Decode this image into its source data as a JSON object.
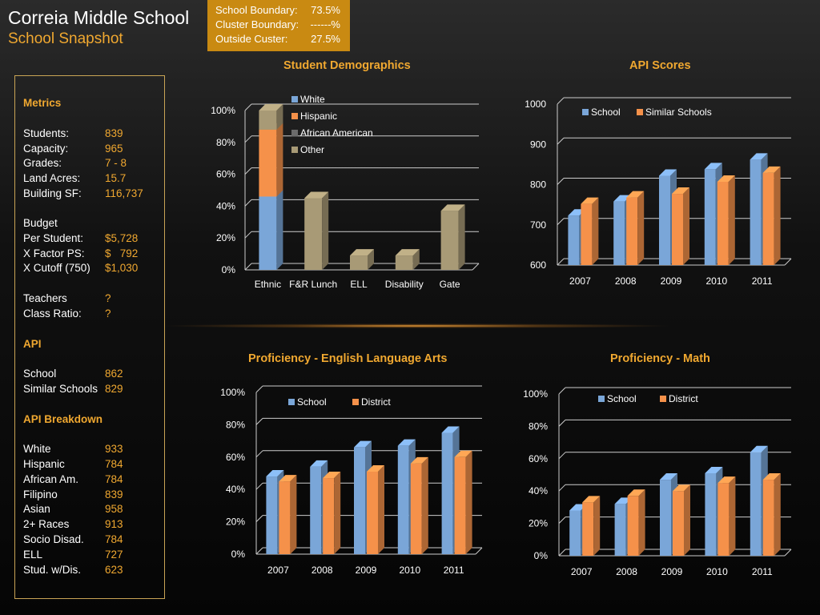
{
  "header": {
    "title": "Correia Middle School",
    "subtitle": "School Snapshot"
  },
  "boundary": [
    {
      "label": "School Boundary:",
      "value": "73.5%"
    },
    {
      "label": "Cluster Boundary:",
      "value": "------%"
    },
    {
      "label": "Outside Custer:",
      "value": "27.5%"
    }
  ],
  "metrics": {
    "heading": "Metrics",
    "rows": [
      {
        "k": "Students:",
        "v": "839"
      },
      {
        "k": "Capacity:",
        "v": "965"
      },
      {
        "k": "Grades:",
        "v": "7 - 8"
      },
      {
        "k": "Land Acres:",
        "v": "15.7"
      },
      {
        "k": "Building SF:",
        "v": "116,737"
      }
    ],
    "budget_heading": "Budget",
    "budget": [
      {
        "k": "Per Student:",
        "v": "$5,728"
      },
      {
        "k": "X Factor PS:",
        "v": "$   792"
      },
      {
        "k": "X Cutoff (750)",
        "v": "$1,030"
      }
    ],
    "staff": [
      {
        "k": "Teachers",
        "v": "?"
      },
      {
        "k": "Class Ratio:",
        "v": "?"
      }
    ],
    "api_heading": "API",
    "api": [
      {
        "k": "School",
        "v": "862"
      },
      {
        "k": "Similar Schools",
        "v": "829"
      }
    ],
    "breakdown_heading": "API Breakdown",
    "breakdown": [
      {
        "k": "White",
        "v": "933"
      },
      {
        "k": "Hispanic",
        "v": "784"
      },
      {
        "k": "African Am.",
        "v": "784"
      },
      {
        "k": "Filipino",
        "v": "839"
      },
      {
        "k": "Asian",
        "v": "958"
      },
      {
        "k": "2+ Races",
        "v": "913"
      },
      {
        "k": "Socio Disad.",
        "v": "784"
      },
      {
        "k": "ELL",
        "v": "727"
      },
      {
        "k": "Stud. w/Dis.",
        "v": "623"
      }
    ]
  },
  "colors": {
    "blue": "#7aa6d8",
    "orange": "#f5914a",
    "tan": "#a89a76",
    "accent": "#f0a830"
  },
  "chart_data": [
    {
      "id": "demographics",
      "type": "bar",
      "title": "Student Demographics",
      "categories": [
        "Ethnic",
        "F&R Lunch",
        "ELL",
        "Disability",
        "Gate"
      ],
      "stack": {
        "category": "Ethnic",
        "segments": [
          {
            "name": "White",
            "value": 46
          },
          {
            "name": "Hispanic",
            "value": 42
          },
          {
            "name": "African American",
            "value": 0
          },
          {
            "name": "Other",
            "value": 12
          }
        ]
      },
      "values": [
        null,
        45,
        9,
        9,
        37
      ],
      "ylim": [
        0,
        100
      ],
      "yticks": [
        "0%",
        "20%",
        "40%",
        "60%",
        "80%",
        "100%"
      ],
      "legend": [
        "White",
        "Hispanic",
        "African American",
        "Other"
      ]
    },
    {
      "id": "api",
      "type": "bar",
      "title": "API Scores",
      "categories": [
        "2007",
        "2008",
        "2009",
        "2010",
        "2011"
      ],
      "series": [
        {
          "name": "School",
          "values": [
            723,
            758,
            822,
            838,
            862
          ]
        },
        {
          "name": "Similar Schools",
          "values": [
            752,
            768,
            777,
            807,
            829
          ]
        }
      ],
      "ylim": [
        600,
        1000
      ],
      "yticks": [
        "600",
        "700",
        "800",
        "900",
        "1000"
      ]
    },
    {
      "id": "ela",
      "type": "bar",
      "title": "Proficiency - English Language Arts",
      "categories": [
        "2007",
        "2008",
        "2009",
        "2010",
        "2011"
      ],
      "series": [
        {
          "name": "School",
          "values": [
            48,
            54,
            66,
            67,
            75
          ]
        },
        {
          "name": "District",
          "values": [
            45,
            47,
            51,
            56,
            60
          ]
        }
      ],
      "ylim": [
        0,
        100
      ],
      "yticks": [
        "0%",
        "20%",
        "40%",
        "60%",
        "80%",
        "100%"
      ]
    },
    {
      "id": "math",
      "type": "bar",
      "title": "Proficiency - Math",
      "categories": [
        "2007",
        "2008",
        "2009",
        "2010",
        "2011"
      ],
      "series": [
        {
          "name": "School",
          "values": [
            28,
            32,
            47,
            51,
            64
          ]
        },
        {
          "name": "District",
          "values": [
            33,
            37,
            40,
            45,
            47
          ]
        }
      ],
      "ylim": [
        0,
        100
      ],
      "yticks": [
        "0%",
        "20%",
        "40%",
        "60%",
        "80%",
        "100%"
      ]
    }
  ]
}
